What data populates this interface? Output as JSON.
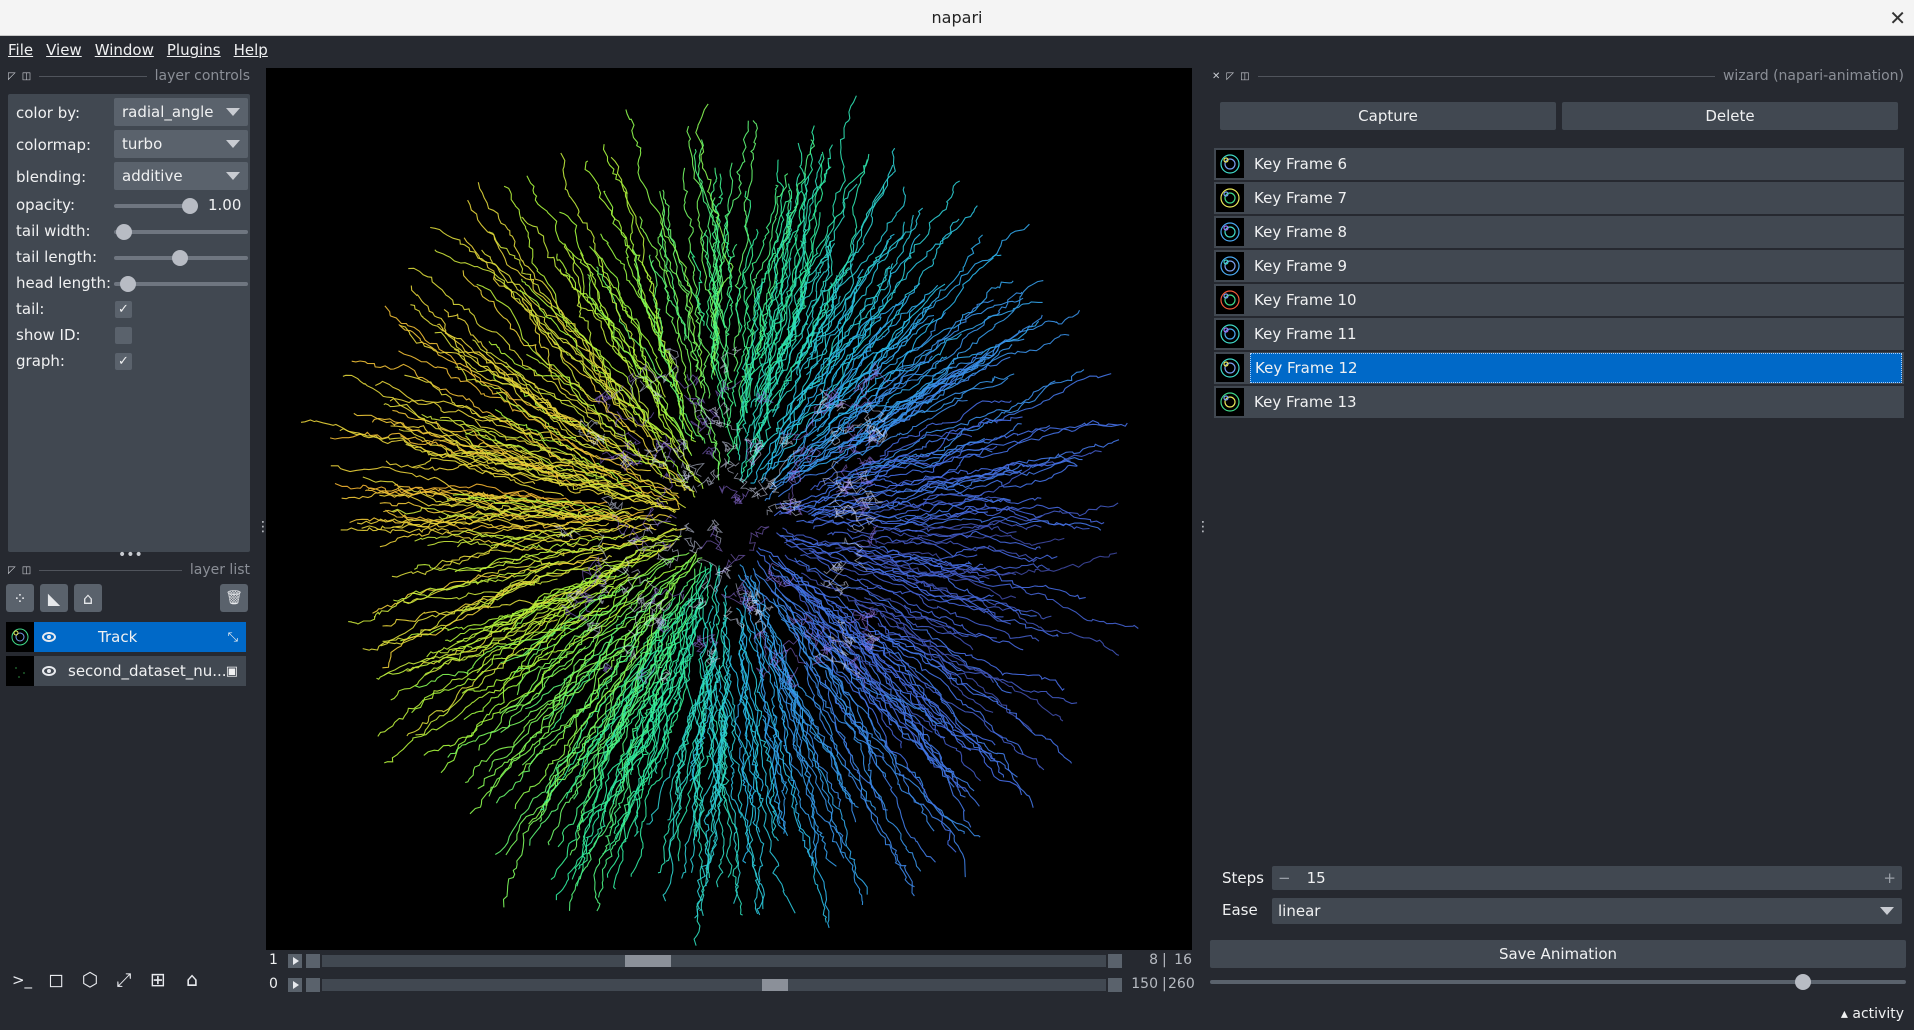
{
  "window": {
    "title": "napari",
    "close_glyph": "✕"
  },
  "menu": [
    "File",
    "View",
    "Window",
    "Plugins",
    "Help"
  ],
  "layer_controls": {
    "title": "layer controls",
    "color_by": {
      "label": "color by:",
      "value": "radial_angle"
    },
    "colormap": {
      "label": "colormap:",
      "value": "turbo"
    },
    "blending": {
      "label": "blending:",
      "value": "additive"
    },
    "opacity": {
      "label": "opacity:",
      "value": "1.00",
      "fraction": 1.0
    },
    "tail_width": {
      "label": "tail width:"
    },
    "tail_length": {
      "label": "tail length:"
    },
    "head_length": {
      "label": "head length:"
    },
    "tail": {
      "label": "tail:",
      "checked": true
    },
    "show_id": {
      "label": "show ID:",
      "checked": false
    },
    "graph": {
      "label": "graph:",
      "checked": true
    },
    "checkmark": "✓"
  },
  "layer_list": {
    "title": "layer list",
    "tools": [
      "points-icon",
      "shapes-icon",
      "labels-icon"
    ],
    "trash_glyph": "🗑",
    "layers": [
      {
        "name": "Track",
        "selected": true,
        "type_icon": "tracks-icon",
        "type_glyph": "⤡"
      },
      {
        "name": "second_dataset_nu...",
        "selected": false,
        "type_icon": "image-icon",
        "type_glyph": "▣"
      }
    ]
  },
  "dims": [
    {
      "index": "1",
      "current": "8",
      "total": "16",
      "position": 0.41
    },
    {
      "index": "0",
      "current": "150",
      "total": "260",
      "position": 0.58
    }
  ],
  "dims_separator": "|",
  "bottom_tools": [
    {
      "name": "console-icon",
      "glyph": ">_"
    },
    {
      "name": "ndisplay-icon",
      "glyph": "◻"
    },
    {
      "name": "roll-dims-icon",
      "glyph": "⬡"
    },
    {
      "name": "transpose-icon",
      "glyph": "⤢"
    },
    {
      "name": "grid-icon",
      "glyph": "⊞"
    },
    {
      "name": "home-icon",
      "glyph": "⌂"
    }
  ],
  "wizard": {
    "title": "wizard (napari-animation)",
    "capture_label": "Capture",
    "delete_label": "Delete",
    "keyframes": [
      {
        "label": "Key Frame 6",
        "selected": false
      },
      {
        "label": "Key Frame 7",
        "selected": false
      },
      {
        "label": "Key Frame 8",
        "selected": false
      },
      {
        "label": "Key Frame 9",
        "selected": false
      },
      {
        "label": "Key Frame 10",
        "selected": false
      },
      {
        "label": "Key Frame 11",
        "selected": false
      },
      {
        "label": "Key Frame 12",
        "selected": true
      },
      {
        "label": "Key Frame 13",
        "selected": false
      }
    ],
    "steps_label": "Steps",
    "steps_value": "15",
    "minus_glyph": "−",
    "plus_glyph": "+",
    "ease_label": "Ease",
    "ease_value": "linear",
    "save_label": "Save Animation",
    "progress": 0.86
  },
  "activity": "▴ activity",
  "colors": {
    "background": "#262930",
    "panel": "#414851",
    "control": "#5a626c",
    "accent": "#0069c8"
  }
}
